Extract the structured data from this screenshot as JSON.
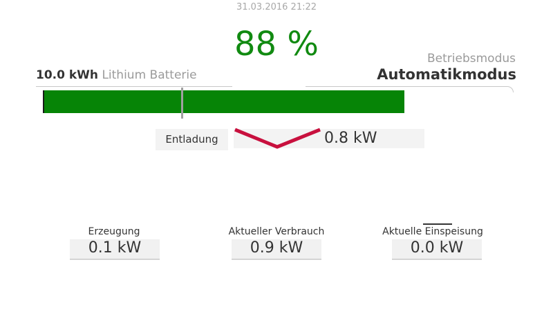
{
  "header": {
    "timestamp": "31.03.2016 21:22",
    "state_of_charge": "88 %",
    "state_of_charge_percent": 88
  },
  "battery": {
    "capacity": "10.0 kWh",
    "type": "Lithium Batterie",
    "fill_color": "#068406"
  },
  "mode": {
    "label": "Betriebsmodus",
    "value": "Automatikmodus"
  },
  "flow": {
    "direction_label": "Entladung",
    "power": "0.8 kW",
    "arrow_color": "#c8103e"
  },
  "stats": {
    "generation": {
      "label": "Erzeugung",
      "value": "0.1 kW"
    },
    "consumption": {
      "label": "Aktueller Verbrauch",
      "value": "0.9 kW"
    },
    "feed_in": {
      "label": "Aktuelle Einspeisung",
      "value": "0.0 kW"
    }
  }
}
